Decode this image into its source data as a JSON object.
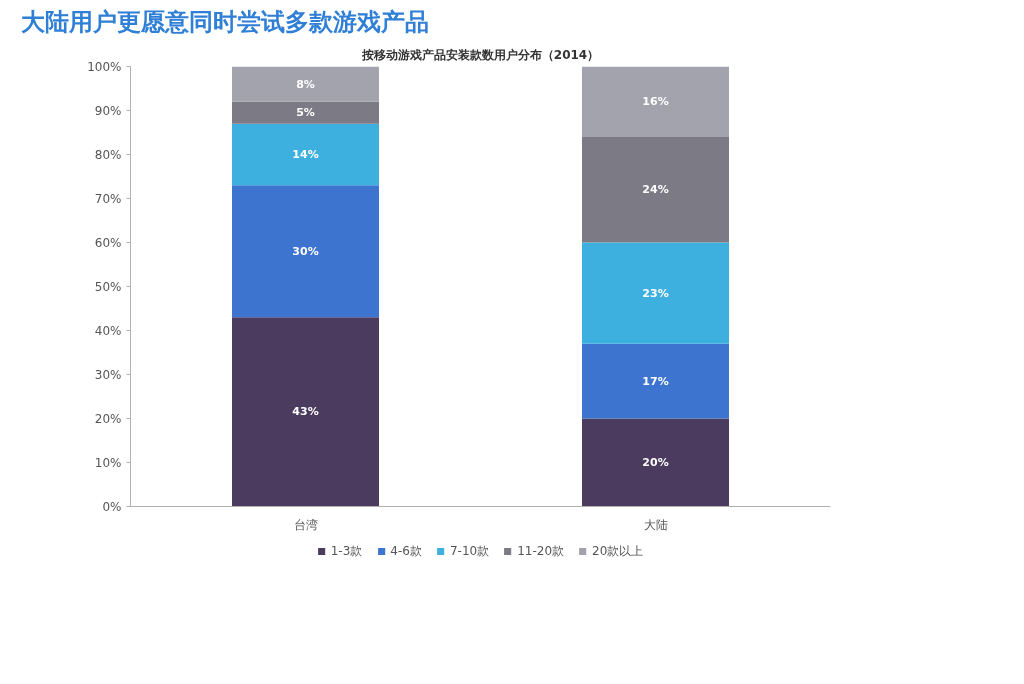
{
  "chart_data": {
    "type": "bar",
    "title": "大陆用户更愿意同时尝试多款游戏产品",
    "subtitle": "按移动游戏产品安装款数用户分布（2014）",
    "categories": [
      "台湾",
      "大陆"
    ],
    "stacked": true,
    "series": [
      {
        "name": "1-3款",
        "color": "#4b3b5e",
        "values": [
          43,
          20
        ],
        "value_labels": [
          "43%",
          "20%"
        ]
      },
      {
        "name": "4-6款",
        "color": "#3d74cf",
        "values": [
          30,
          17
        ],
        "value_labels": [
          "30%",
          "17%"
        ]
      },
      {
        "name": "7-10款",
        "color": "#3db0df",
        "values": [
          14,
          23
        ],
        "value_labels": [
          "14%",
          "23%"
        ]
      },
      {
        "name": "11-20款",
        "color": "#7c7a84",
        "values": [
          5,
          24
        ],
        "value_labels": [
          "5%",
          "24%"
        ]
      },
      {
        "name": "20款以上",
        "color": "#a3a3ad",
        "values": [
          8,
          16
        ],
        "value_labels": [
          "8%",
          "16%"
        ]
      }
    ],
    "ylim": [
      0,
      100
    ],
    "yticks": [
      {
        "value": 0,
        "label": "0%"
      },
      {
        "value": 10,
        "label": "10%"
      },
      {
        "value": 20,
        "label": "20%"
      },
      {
        "value": 30,
        "label": "30%"
      },
      {
        "value": 40,
        "label": "40%"
      },
      {
        "value": 50,
        "label": "50%"
      },
      {
        "value": 60,
        "label": "60%"
      },
      {
        "value": 70,
        "label": "70%"
      },
      {
        "value": 80,
        "label": "80%"
      },
      {
        "value": 90,
        "label": "90%"
      },
      {
        "value": 100,
        "label": "100%"
      }
    ],
    "grid": false,
    "legend": "bottom"
  }
}
